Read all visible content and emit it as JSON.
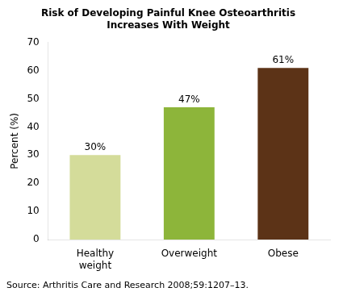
{
  "chart_data": {
    "type": "bar",
    "title": "Risk of Developing Painful Knee Osteoarthritis\nIncreases With Weight",
    "categories": [
      "Healthy\nweight",
      "Overweight",
      "Obese"
    ],
    "values": [
      30,
      47,
      61
    ],
    "value_labels": [
      "30%",
      "47%",
      "61%"
    ],
    "data_labels": true,
    "colors": [
      "#d4dc9a",
      "#8db53a",
      "#5c3317"
    ],
    "ylabel": "Percent (%)",
    "ylim": [
      0,
      70
    ],
    "yticks": [
      0,
      10,
      20,
      30,
      40,
      50,
      60,
      70
    ],
    "grid": false,
    "annotation": "Source: Arthritis Care and Research 2008;59:1207–13."
  }
}
